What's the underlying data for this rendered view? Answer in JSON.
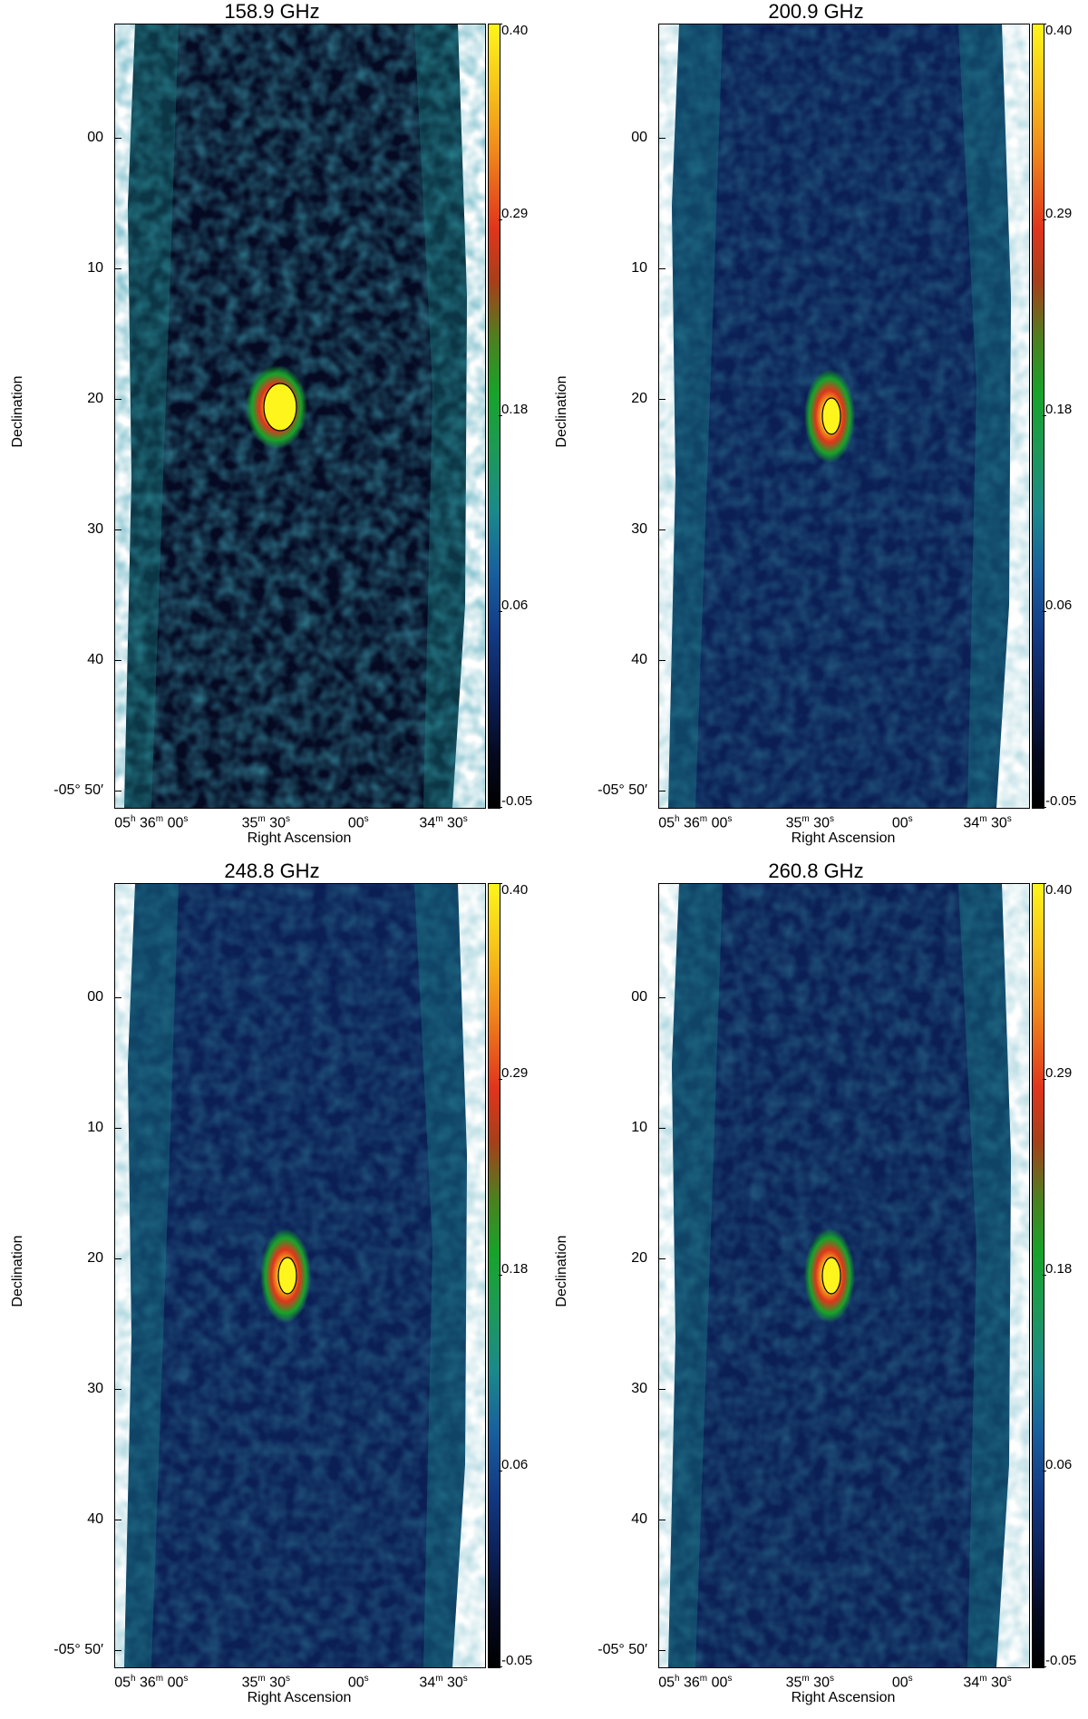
{
  "panels": [
    {
      "title": "158.9 GHz",
      "ylabel": "Declination",
      "xlabel": "Right Ascension"
    },
    {
      "title": "200.9 GHz",
      "ylabel": "Declination",
      "xlabel": "Right Ascension"
    },
    {
      "title": "248.8 GHz",
      "ylabel": "Declination",
      "xlabel": "Right Ascension"
    },
    {
      "title": "260.8 GHz",
      "ylabel": "Declination",
      "xlabel": "Right Ascension"
    }
  ],
  "dec_ticks": [
    "00",
    "10",
    "20",
    "30",
    "40",
    "-05° 50′"
  ],
  "ra_ticks": [
    {
      "h": "05",
      "m": "36",
      "s": "00"
    },
    {
      "m": "35",
      "s": "30"
    },
    {
      "s": "00"
    },
    {
      "m": "34",
      "s": "30"
    }
  ],
  "colorbar_ticks": [
    "0.40",
    "0.29",
    "0.18",
    "0.06",
    "-0.05"
  ],
  "colors": {
    "low": "#000000",
    "mid_blue": "#123982",
    "teal": "#1b8a8a",
    "green": "#17a32a",
    "red": "#e0351c",
    "high": "#fdf51b"
  }
}
